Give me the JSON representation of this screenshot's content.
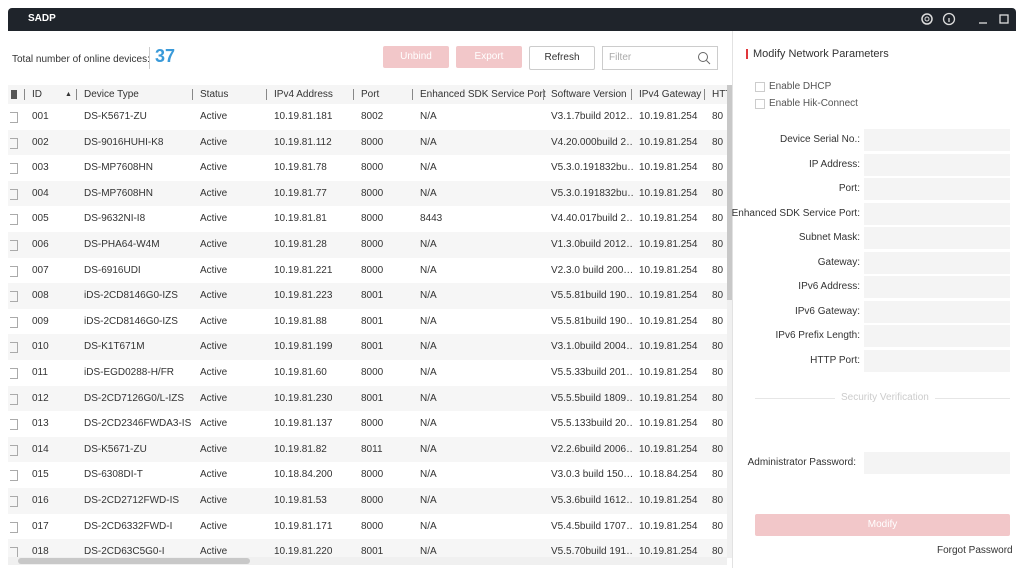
{
  "window": {
    "title": "SADP"
  },
  "toolbar": {
    "total_label": "Total number of online devices:",
    "total_count": 37,
    "buttons": [
      "Unbind",
      "Export",
      "Refresh"
    ],
    "filter_placeholder": "Filter"
  },
  "table": {
    "columns": [
      "ID",
      "Device Type",
      "Status",
      "IPv4 Address",
      "Port",
      "Enhanced SDK Service Port",
      "Software Version",
      "IPv4 Gateway",
      "HTT"
    ],
    "rows": [
      [
        "001",
        "DS-K5671-ZU",
        "Active",
        "10.19.81.181",
        "8002",
        "N/A",
        "V3.1.7build 2012…",
        "10.19.81.254",
        "80"
      ],
      [
        "002",
        "DS-9016HUHI-K8",
        "Active",
        "10.19.81.112",
        "8000",
        "N/A",
        "V4.20.000build 2…",
        "10.19.81.254",
        "80"
      ],
      [
        "003",
        "DS-MP7608HN",
        "Active",
        "10.19.81.78",
        "8000",
        "N/A",
        "V5.3.0.191832bu…",
        "10.19.81.254",
        "80"
      ],
      [
        "004",
        "DS-MP7608HN",
        "Active",
        "10.19.81.77",
        "8000",
        "N/A",
        "V5.3.0.191832bu…",
        "10.19.81.254",
        "80"
      ],
      [
        "005",
        "DS-9632NI-I8",
        "Active",
        "10.19.81.81",
        "8000",
        "8443",
        "V4.40.017build 2…",
        "10.19.81.254",
        "80"
      ],
      [
        "006",
        "DS-PHA64-W4M",
        "Active",
        "10.19.81.28",
        "8000",
        "N/A",
        "V1.3.0build 2012…",
        "10.19.81.254",
        "80"
      ],
      [
        "007",
        "DS-6916UDI",
        "Active",
        "10.19.81.221",
        "8000",
        "N/A",
        "V2.3.0 build 200…",
        "10.19.81.254",
        "80"
      ],
      [
        "008",
        "iDS-2CD8146G0-IZS",
        "Active",
        "10.19.81.223",
        "8001",
        "N/A",
        "V5.5.81build 190…",
        "10.19.81.254",
        "80"
      ],
      [
        "009",
        "iDS-2CD8146G0-IZS",
        "Active",
        "10.19.81.88",
        "8001",
        "N/A",
        "V5.5.81build 190…",
        "10.19.81.254",
        "80"
      ],
      [
        "010",
        "DS-K1T671M",
        "Active",
        "10.19.81.199",
        "8001",
        "N/A",
        "V3.1.0build 2004…",
        "10.19.81.254",
        "80"
      ],
      [
        "011",
        "iDS-EGD0288-H/FR",
        "Active",
        "10.19.81.60",
        "8000",
        "N/A",
        "V5.5.33build 201…",
        "10.19.81.254",
        "80"
      ],
      [
        "012",
        "DS-2CD7126G0/L-IZS",
        "Active",
        "10.19.81.230",
        "8001",
        "N/A",
        "V5.5.5build 1809…",
        "10.19.81.254",
        "80"
      ],
      [
        "013",
        "DS-2CD2346FWDA3-IS",
        "Active",
        "10.19.81.137",
        "8000",
        "N/A",
        "V5.5.133build 20…",
        "10.19.81.254",
        "80"
      ],
      [
        "014",
        "DS-K5671-ZU",
        "Active",
        "10.19.81.82",
        "8011",
        "N/A",
        "V2.2.6build 2006…",
        "10.19.81.254",
        "80"
      ],
      [
        "015",
        "DS-6308DI-T",
        "Active",
        "10.18.84.200",
        "8000",
        "N/A",
        "V3.0.3 build 150…",
        "10.18.84.254",
        "80"
      ],
      [
        "016",
        "DS-2CD2712FWD-IS",
        "Active",
        "10.19.81.53",
        "8000",
        "N/A",
        "V5.3.6build 1612…",
        "10.19.81.254",
        "80"
      ],
      [
        "017",
        "DS-2CD6332FWD-I",
        "Active",
        "10.19.81.171",
        "8000",
        "N/A",
        "V5.4.5build 1707…",
        "10.19.81.254",
        "80"
      ],
      [
        "018",
        "DS-2CD63C5G0-I",
        "Active",
        "10.19.81.220",
        "8001",
        "N/A",
        "V5.5.70build 191…",
        "10.19.81.254",
        "80"
      ]
    ]
  },
  "panel": {
    "title": "Modify Network Parameters",
    "checkboxes": [
      "Enable DHCP",
      "Enable Hik-Connect"
    ],
    "fields": [
      "Device Serial No.:",
      "IP Address:",
      "Port:",
      "Enhanced SDK Service Port:",
      "Subnet Mask:",
      "Gateway:",
      "IPv6 Address:",
      "IPv6 Gateway:",
      "IPv6 Prefix Length:",
      "HTTP Port:"
    ],
    "security_label": "Security Verification",
    "password_label": "Administrator Password:",
    "modify_button": "Modify",
    "forgot_link": "Forgot Password"
  }
}
